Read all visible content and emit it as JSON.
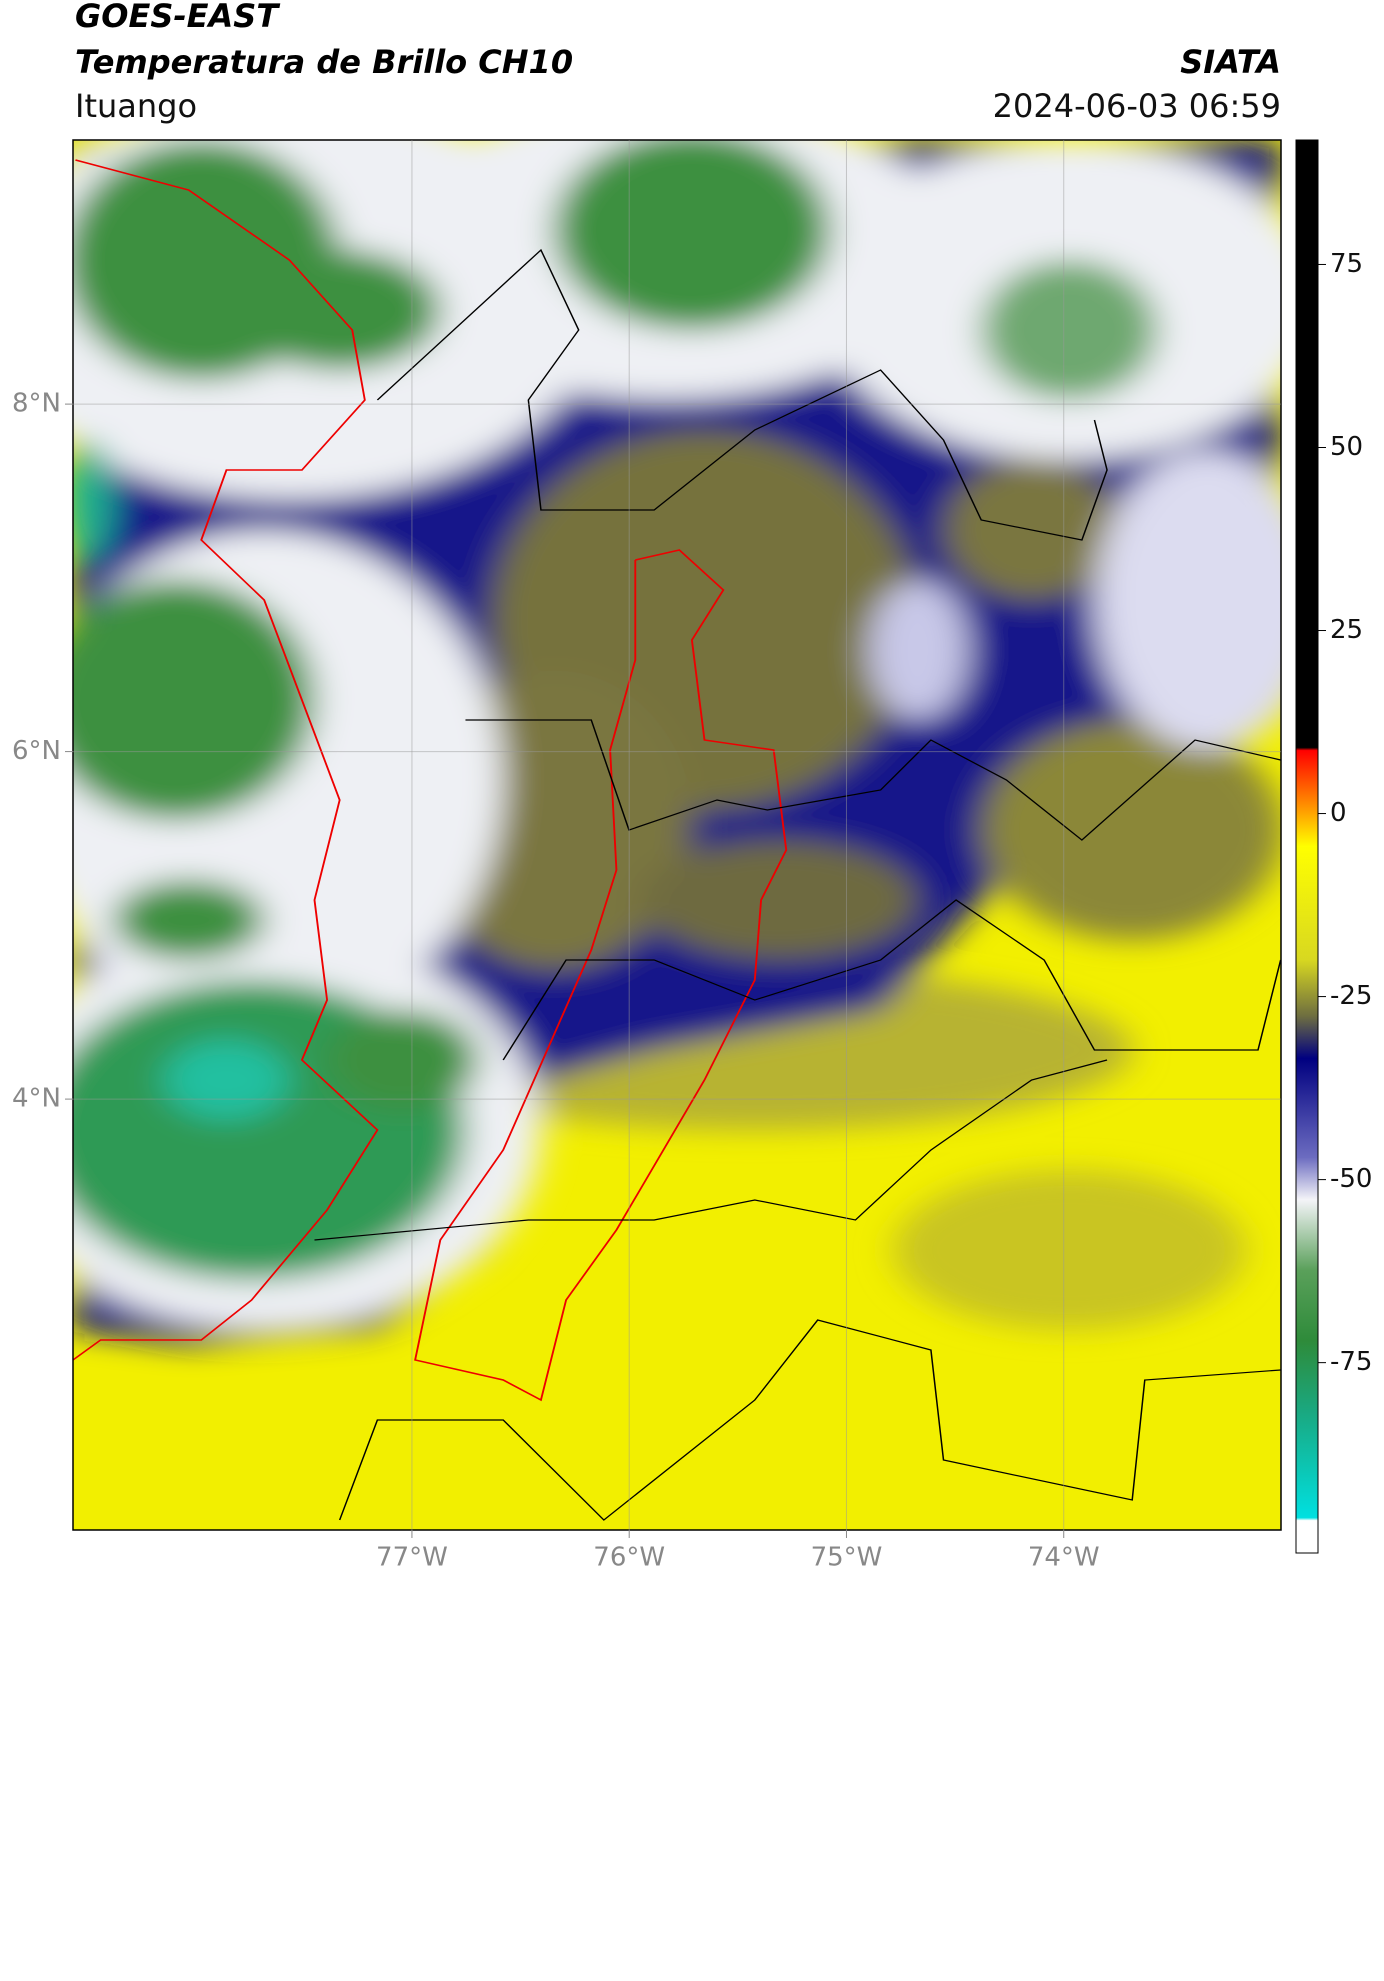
{
  "header": {
    "title": "GOES-EAST",
    "subtitle": "Temperatura de Brillo CH10",
    "source": "SIATA",
    "location": "Ituango",
    "datetime": "2024-06-03 06:59"
  },
  "chart_data": {
    "type": "map",
    "xlim": [
      -78.56,
      -73.0
    ],
    "ylim": [
      1.52,
      9.52
    ],
    "xticks": [
      {
        "value": -77,
        "label": "77°W"
      },
      {
        "value": -76,
        "label": "76°W"
      },
      {
        "value": -75,
        "label": "75°W"
      },
      {
        "value": -74,
        "label": "74°W"
      }
    ],
    "yticks": [
      {
        "value": 8,
        "label": "8°N"
      },
      {
        "value": 6,
        "label": "6°N"
      },
      {
        "value": 4,
        "label": "4°N"
      }
    ],
    "grid": true,
    "colorbar": {
      "lim": [
        -101,
        92
      ],
      "ticks": [
        75,
        50,
        25,
        0,
        -25,
        -50,
        -75
      ]
    }
  }
}
